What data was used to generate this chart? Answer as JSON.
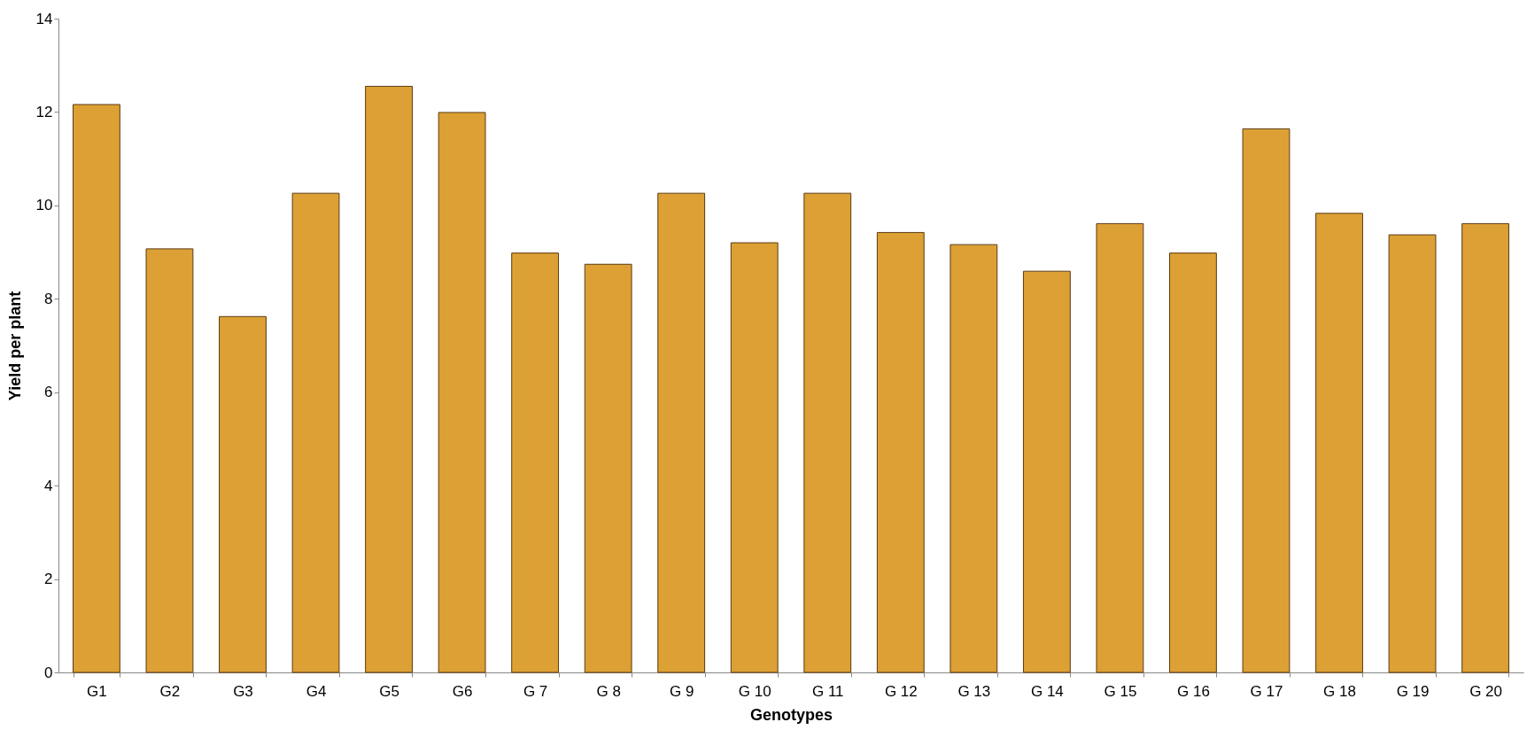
{
  "chart_data": {
    "type": "bar",
    "xlabel": "Genotypes",
    "ylabel": "Yield per plant",
    "categories": [
      "G1",
      "G2",
      "G3",
      "G4",
      "G5",
      "G6",
      "G 7",
      "G 8",
      "G 9",
      "G 10",
      "G 11",
      "G 12",
      "G 13",
      "G 14",
      "G 15",
      "G 16",
      "G 17",
      "G 18",
      "G 19",
      "G 20"
    ],
    "values": [
      12.16,
      9.07,
      7.62,
      10.26,
      12.55,
      11.99,
      8.98,
      8.74,
      10.26,
      9.2,
      10.26,
      9.42,
      9.16,
      8.59,
      9.61,
      8.98,
      11.64,
      9.83,
      9.37,
      9.61
    ],
    "color": "#dca035",
    "ylim": [
      0,
      14
    ],
    "yticks": [
      0,
      2,
      4,
      6,
      8,
      10,
      12,
      14
    ],
    "grid": false
  }
}
